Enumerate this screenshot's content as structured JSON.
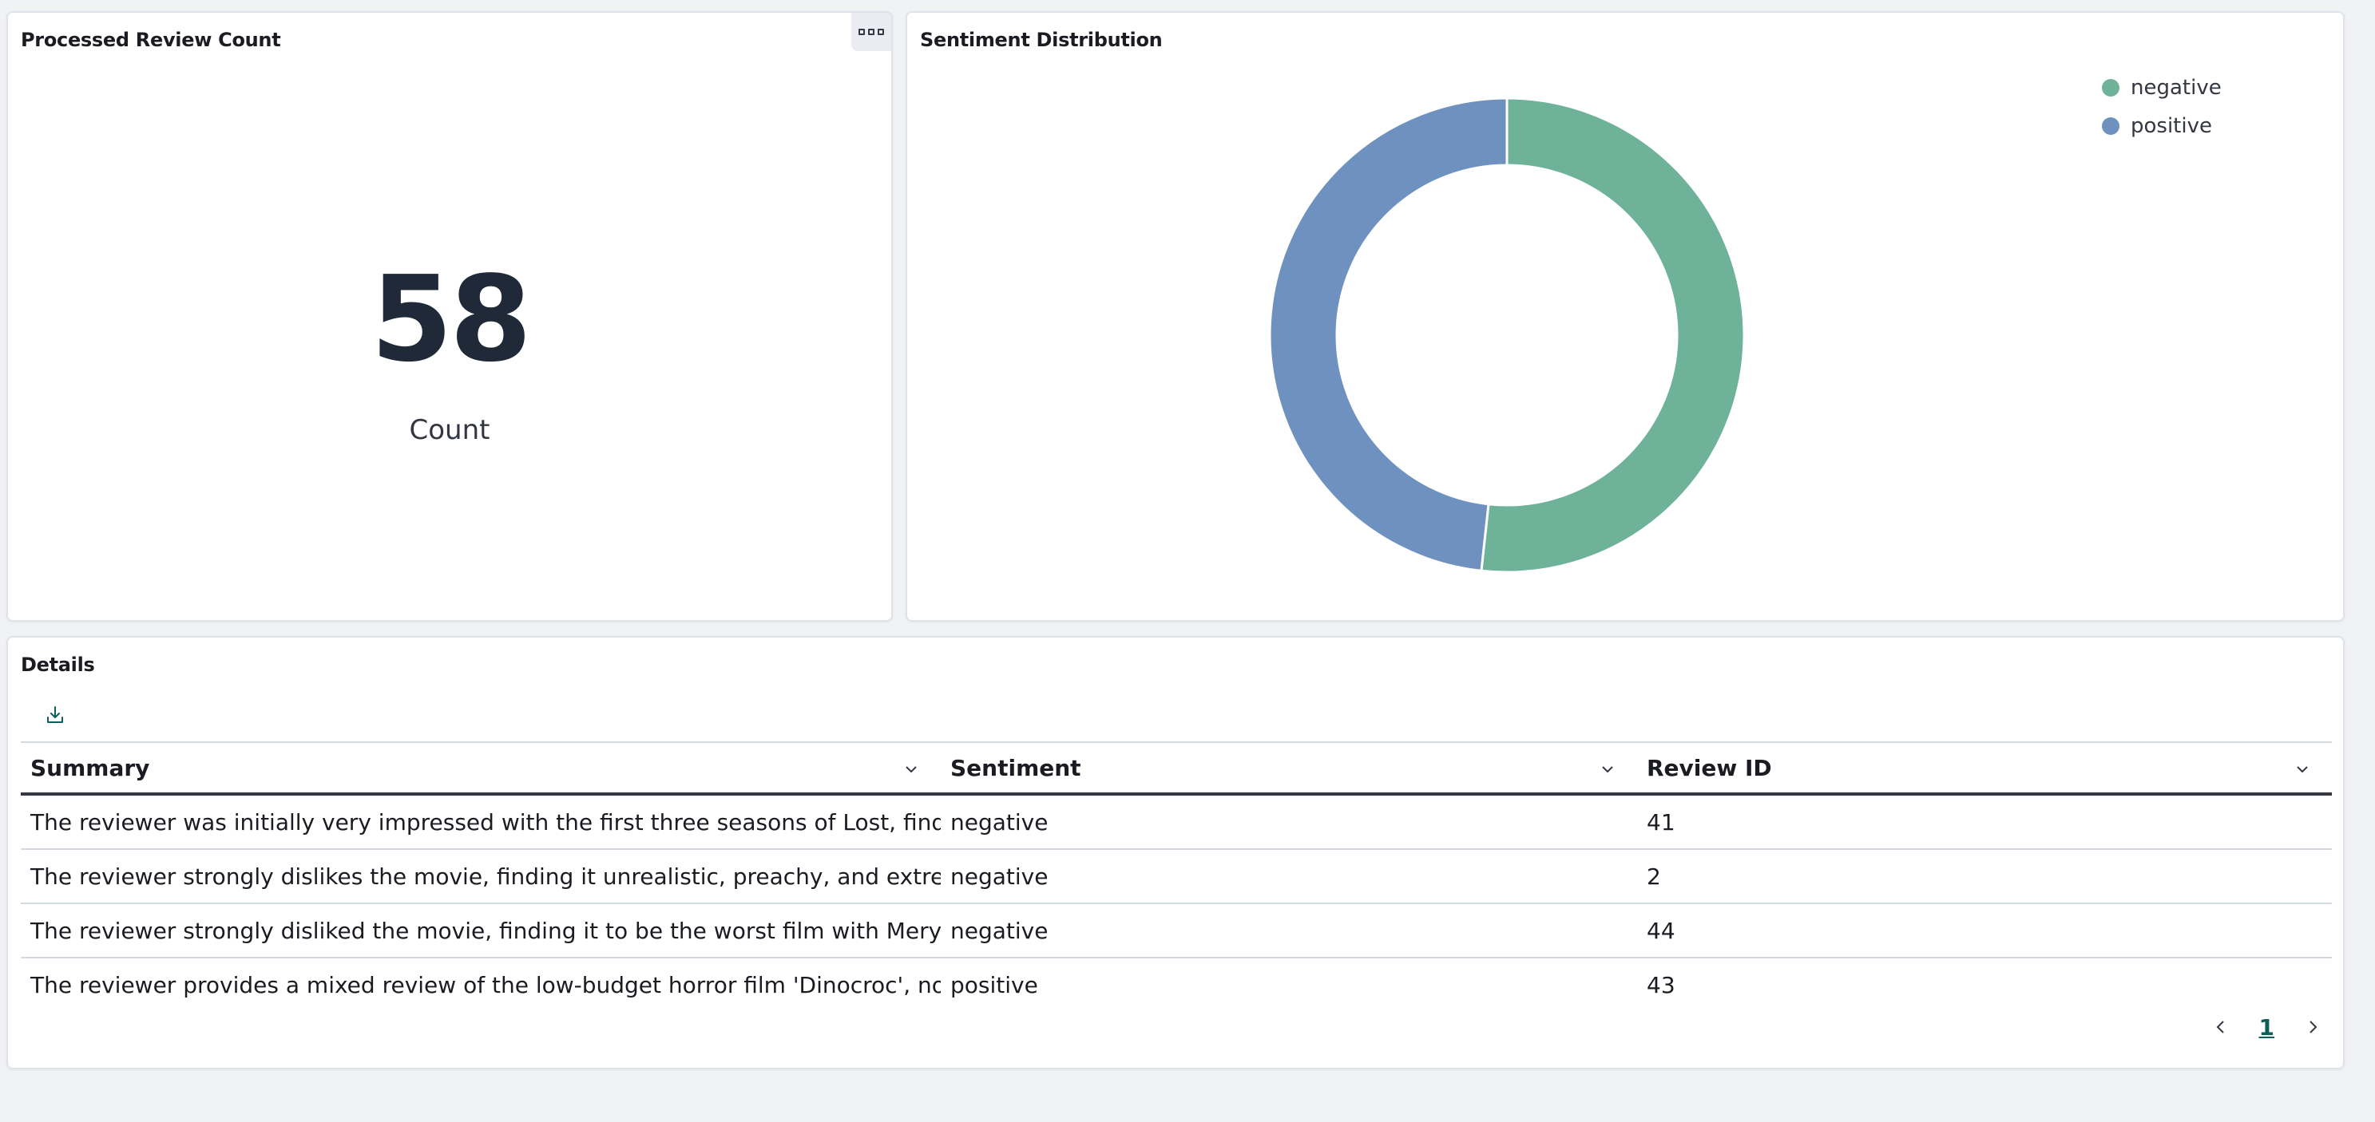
{
  "count_panel": {
    "title": "Processed Review Count",
    "value": "58",
    "label": "Count",
    "options_icon": "ellipsis-box-icon"
  },
  "chart_panel": {
    "title": "Sentiment Distribution"
  },
  "chart_data": {
    "type": "pie",
    "style": "donut",
    "categories": [
      "negative",
      "positive"
    ],
    "values": [
      30,
      28
    ],
    "colors": [
      "#6fb29a",
      "#6e91bf"
    ],
    "legend_position": "top-right"
  },
  "details_panel": {
    "title": "Details",
    "download_icon": "download-icon",
    "columns": [
      "Summary",
      "Sentiment",
      "Review ID"
    ],
    "rows": [
      [
        "The reviewer was initially very impressed with the first three seasons of Lost, finding th",
        "negative",
        "41"
      ],
      [
        "The reviewer strongly dislikes the movie, finding it unrealistic, preachy, and extremely",
        "negative",
        "2"
      ],
      [
        "The reviewer strongly disliked the movie, finding it to be the worst film with Meryl Stre",
        "negative",
        "44"
      ],
      [
        "The reviewer provides a mixed review of the low-budget horror film 'Dinocroc', noting t",
        "positive",
        "43"
      ]
    ],
    "pagination": {
      "current_page": "1"
    }
  }
}
